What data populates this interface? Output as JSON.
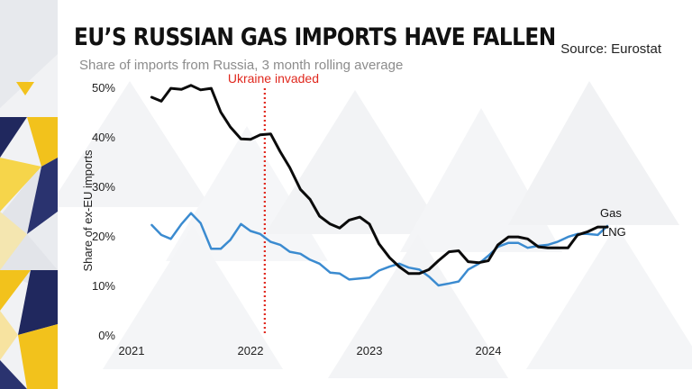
{
  "header": {
    "title": "EU’S RUSSIAN GAS IMPORTS HAVE FALLEN",
    "subtitle": "Share of imports from Russia, 3 month rolling average",
    "source": "Source: Eurostat"
  },
  "colors": {
    "gas": "#0b0b0b",
    "lng": "#3b8bd0",
    "annotation": "#e0281e",
    "axis_text": "#222222",
    "strip_yellow": "#f2c21c",
    "strip_navy": "#20285e"
  },
  "chart_data": {
    "type": "line",
    "ylabel": "Share of ex-EU imports",
    "xlabel": "",
    "xlim": [
      2021.0,
      2025.2
    ],
    "ylim": [
      0,
      50
    ],
    "x_ticks": [
      2021,
      2022,
      2023,
      2024
    ],
    "x_tick_labels": [
      "2021",
      "2022",
      "2023",
      "2024"
    ],
    "y_ticks": [
      0,
      10,
      20,
      30,
      40,
      50
    ],
    "y_tick_labels": [
      "0%",
      "10%",
      "20%",
      "30%",
      "40%",
      "50%"
    ],
    "grid": false,
    "legend": "direct labels at line ends",
    "annotations": [
      {
        "label": "Ukraine invaded",
        "x": 2022.12,
        "style": "dotted vertical line"
      }
    ],
    "series": [
      {
        "name": "Gas",
        "color": "#0b0b0b",
        "x": [
          2021.17,
          2021.25,
          2021.33,
          2021.42,
          2021.5,
          2021.58,
          2021.67,
          2021.75,
          2021.83,
          2021.92,
          2022.0,
          2022.08,
          2022.17,
          2022.25,
          2022.33,
          2022.42,
          2022.5,
          2022.58,
          2022.67,
          2022.75,
          2022.83,
          2022.92,
          2023.0,
          2023.08,
          2023.17,
          2023.25,
          2023.33,
          2023.42,
          2023.5,
          2023.58,
          2023.67,
          2023.75,
          2023.83,
          2023.92,
          2024.0,
          2024.08,
          2024.17,
          2024.25,
          2024.33,
          2024.42,
          2024.5,
          2024.58,
          2024.67,
          2024.75,
          2024.83,
          2024.92,
          2025.0
        ],
        "y": [
          48.0,
          47.2,
          49.8,
          49.6,
          50.4,
          49.5,
          49.8,
          45.0,
          42.0,
          39.6,
          39.5,
          40.4,
          40.6,
          37.0,
          33.8,
          29.4,
          27.4,
          24.0,
          22.4,
          21.6,
          23.2,
          23.8,
          22.4,
          18.4,
          15.6,
          13.8,
          12.4,
          12.4,
          13.2,
          15.0,
          16.8,
          17.0,
          14.8,
          14.6,
          15.0,
          18.2,
          19.8,
          19.8,
          19.4,
          17.8,
          17.6,
          17.6,
          17.6,
          20.2,
          20.8,
          21.8,
          21.8
        ]
      },
      {
        "name": "LNG",
        "color": "#3b8bd0",
        "x": [
          2021.17,
          2021.25,
          2021.33,
          2021.42,
          2021.5,
          2021.58,
          2021.67,
          2021.75,
          2021.83,
          2021.92,
          2022.0,
          2022.08,
          2022.17,
          2022.25,
          2022.33,
          2022.42,
          2022.5,
          2022.58,
          2022.67,
          2022.75,
          2022.83,
          2022.92,
          2023.0,
          2023.08,
          2023.17,
          2023.25,
          2023.33,
          2023.42,
          2023.5,
          2023.58,
          2023.67,
          2023.75,
          2023.83,
          2023.92,
          2024.0,
          2024.08,
          2024.17,
          2024.25,
          2024.33,
          2024.42,
          2024.5,
          2024.58,
          2024.67,
          2024.75,
          2024.83,
          2024.92,
          2025.0
        ],
        "y": [
          22.2,
          20.2,
          19.4,
          22.4,
          24.6,
          22.6,
          17.4,
          17.4,
          19.2,
          22.4,
          21.0,
          20.4,
          18.8,
          18.2,
          16.8,
          16.4,
          15.2,
          14.4,
          12.6,
          12.4,
          11.2,
          11.4,
          11.6,
          13.0,
          13.8,
          14.4,
          13.6,
          13.2,
          11.8,
          10.0,
          10.4,
          10.8,
          13.2,
          14.4,
          16.0,
          17.8,
          18.6,
          18.6,
          17.6,
          18.0,
          18.2,
          18.8,
          19.8,
          20.4,
          20.4,
          20.2,
          22.0
        ]
      }
    ]
  }
}
